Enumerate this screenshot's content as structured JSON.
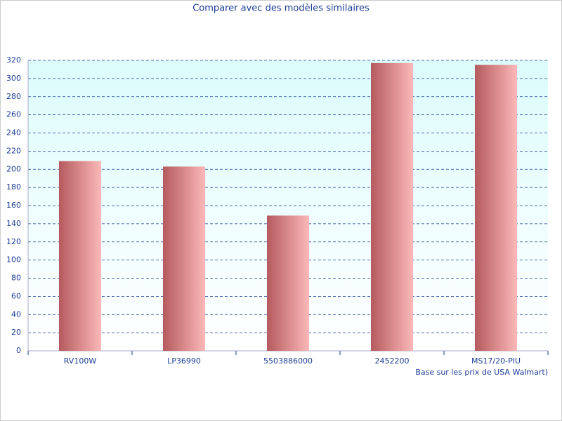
{
  "chart_data": {
    "type": "bar",
    "title": "Comparer avec des modèles similaires",
    "x_label": "Base sur les prix de USA Walmart)",
    "categories": [
      "RV100W",
      "LP36990",
      "5503886000",
      "2452200",
      "MS17/20-PIU"
    ],
    "values": [
      209,
      203,
      149,
      317,
      315
    ],
    "color": "#b55a5e",
    "color_end": "#fbb8b8",
    "ylim": [
      0,
      320
    ],
    "yticks": [
      0,
      20,
      40,
      60,
      80,
      100,
      120,
      140,
      160,
      180,
      200,
      220,
      240,
      260,
      280,
      300,
      320
    ],
    "grid": true
  }
}
